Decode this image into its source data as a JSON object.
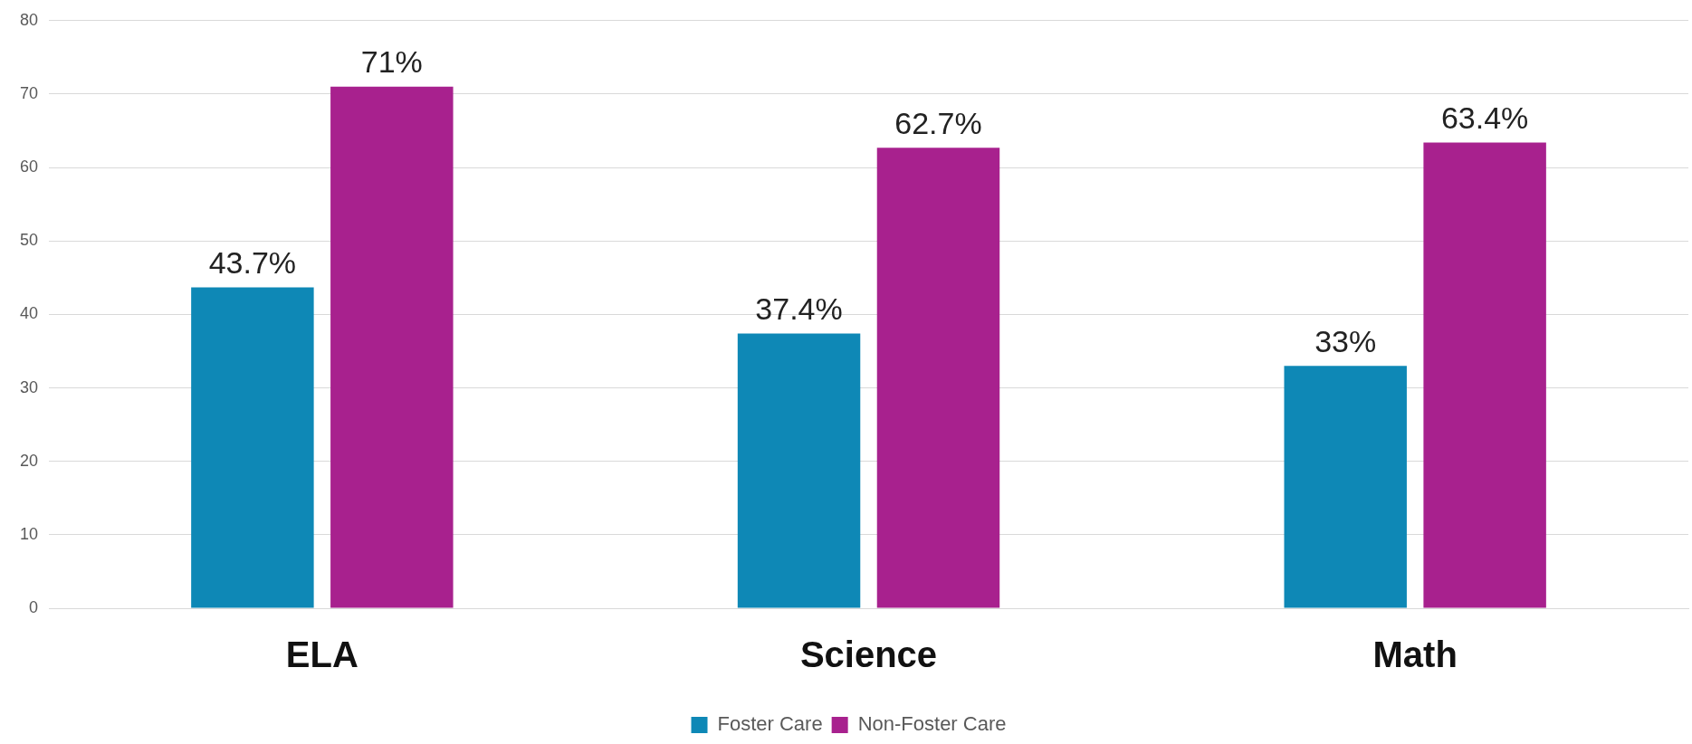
{
  "chart_data": {
    "type": "bar",
    "categories": [
      "ELA",
      "Science",
      "Math"
    ],
    "series": [
      {
        "name": "Foster Care",
        "color": "#0e88b6",
        "values": [
          43.7,
          37.4,
          33
        ],
        "value_labels": [
          "43.7%",
          "37.4%",
          "33%"
        ]
      },
      {
        "name": "Non-Foster Care",
        "color": "#a8218e",
        "values": [
          71,
          62.7,
          63.4
        ],
        "value_labels": [
          "71%",
          "62.7%",
          "63.4%"
        ]
      }
    ],
    "ylim": [
      0,
      80
    ],
    "yticks": [
      0,
      10,
      20,
      30,
      40,
      50,
      60,
      70,
      80
    ],
    "grid": "y",
    "legend": "bottom"
  }
}
